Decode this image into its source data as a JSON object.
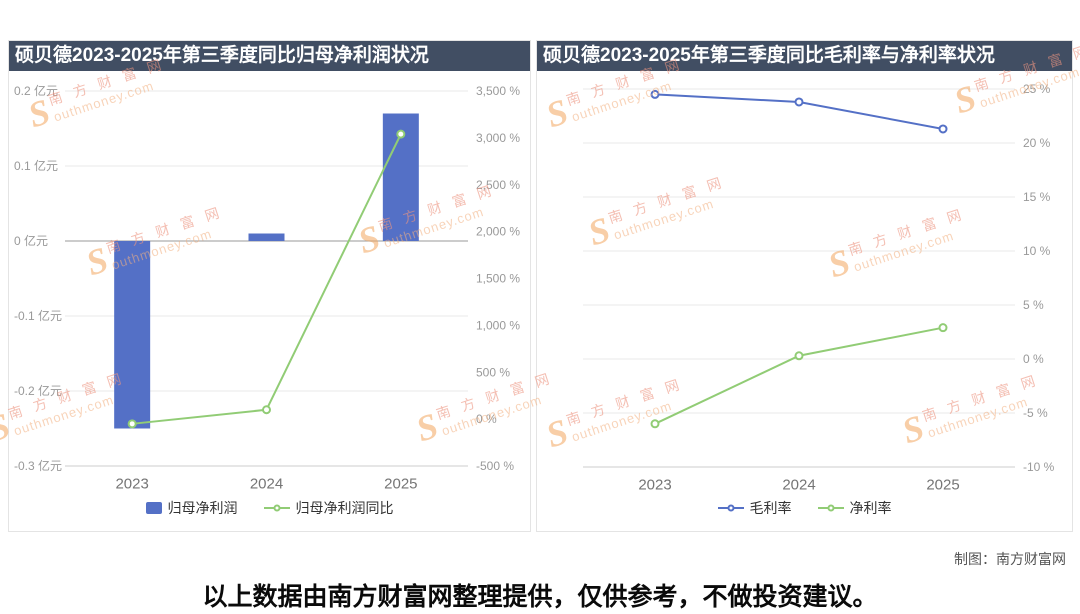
{
  "page": {
    "credit": "制图：南方财富网",
    "footer_note": "以上数据由南方财富网整理提供，仅供参考，不做投资建议。",
    "watermark": {
      "s": "S",
      "zh": "南 方 财 富 网",
      "en": "outhmoney.com",
      "color": "#f3a65e"
    }
  },
  "chart_data": [
    {
      "type": "bar",
      "title": "硕贝德2023-2025年第三季度同比归母净利润状况",
      "categories": [
        "2023",
        "2024",
        "2025"
      ],
      "grid_on_axis": "left",
      "zero_line_axis": "left",
      "legend_position": "bottom",
      "left_axis": {
        "max": 0.2,
        "min": -0.3,
        "unit": "亿元",
        "ticks": [
          {
            "value": 0.2,
            "label": "0.2 亿元"
          },
          {
            "value": 0.1,
            "label": "0.1 亿元"
          },
          {
            "value": 0,
            "label": "0 亿元"
          },
          {
            "value": -0.1,
            "label": "-0.1 亿元"
          },
          {
            "value": -0.2,
            "label": "-0.2 亿元"
          },
          {
            "value": -0.3,
            "label": "-0.3 亿元"
          }
        ]
      },
      "right_axis": {
        "max": 3500,
        "min": -500,
        "unit": "%",
        "ticks": [
          {
            "value": 3500,
            "label": "3,500 %"
          },
          {
            "value": 3000,
            "label": "3,000 %"
          },
          {
            "value": 2500,
            "label": "2,500 %"
          },
          {
            "value": 2000,
            "label": "2,000 %"
          },
          {
            "value": 1500,
            "label": "1,500 %"
          },
          {
            "value": 1000,
            "label": "1,000 %"
          },
          {
            "value": 500,
            "label": "500 %"
          },
          {
            "value": 0,
            "label": "0 %"
          },
          {
            "value": -500,
            "label": "-500 %"
          }
        ]
      },
      "series": [
        {
          "name": "归母净利润",
          "type": "bar",
          "axis": "left",
          "unit": "亿元",
          "color": "#5470c6",
          "values": [
            -0.25,
            0.01,
            0.17
          ]
        },
        {
          "name": "归母净利润同比",
          "type": "line",
          "axis": "right",
          "unit": "%",
          "color": "#91cc75",
          "values": [
            -50,
            100,
            3040
          ]
        }
      ]
    },
    {
      "type": "line",
      "title": "硕贝德2023-2025年第三季度同比毛利率与净利率状况",
      "categories": [
        "2023",
        "2024",
        "2025"
      ],
      "grid_on_axis": "right",
      "legend_position": "bottom",
      "right_axis": {
        "max": 25,
        "min": -10,
        "unit": "%",
        "ticks": [
          {
            "value": 25,
            "label": "25 %"
          },
          {
            "value": 20,
            "label": "20 %"
          },
          {
            "value": 15,
            "label": "15 %"
          },
          {
            "value": 10,
            "label": "10 %"
          },
          {
            "value": 5,
            "label": "5 %"
          },
          {
            "value": 0,
            "label": "0 %"
          },
          {
            "value": -5,
            "label": "-5 %"
          },
          {
            "value": -10,
            "label": "-10 %"
          }
        ]
      },
      "series": [
        {
          "name": "毛利率",
          "type": "line",
          "axis": "right",
          "unit": "%",
          "color": "#5470c6",
          "values": [
            24.5,
            23.8,
            21.3
          ]
        },
        {
          "name": "净利率",
          "type": "line",
          "axis": "right",
          "unit": "%",
          "color": "#91cc75",
          "values": [
            -6,
            0.3,
            2.9
          ]
        }
      ]
    }
  ]
}
